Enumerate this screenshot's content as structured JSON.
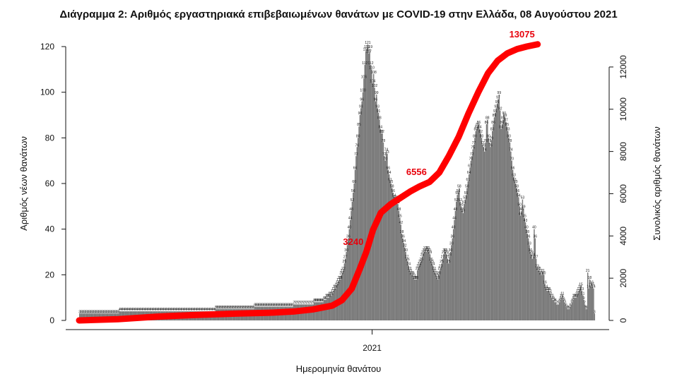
{
  "chart_data": {
    "type": "bar",
    "title": "Διάγραμμα 2: Αριθμός εργαστηριακά επιβεβαιωμένων θανάτων με COVID-19 στην Ελλάδα, 08 Αυγούστου 2021",
    "xlabel": "Ημερομηνία θανάτου",
    "ylabel": "Αριθμός νέων θανάτων",
    "y2label": "Συνολικός αριθμός θανάτων",
    "ylim": [
      0,
      120
    ],
    "y2lim": [
      0,
      13100
    ],
    "yticks": [
      0,
      20,
      40,
      60,
      80,
      100,
      120
    ],
    "y2ticks": [
      0,
      2000,
      4000,
      6000,
      8000,
      10000,
      12000
    ],
    "xtick_label": "2021",
    "xtick_index": 301,
    "grid": false,
    "bar_color": "#7a7a7a",
    "line_color": "#ff0000",
    "series": [
      {
        "type": "bar",
        "values": [
          3,
          3,
          3,
          3,
          3,
          3,
          3,
          3,
          3,
          3,
          3,
          3,
          3,
          3,
          3,
          3,
          3,
          3,
          3,
          3,
          3,
          3,
          3,
          3,
          3,
          3,
          3,
          3,
          3,
          3,
          3,
          3,
          3,
          3,
          3,
          3,
          3,
          3,
          3,
          3,
          3,
          4,
          4,
          4,
          4,
          4,
          4,
          4,
          4,
          4,
          4,
          4,
          4,
          4,
          4,
          4,
          4,
          4,
          4,
          4,
          4,
          4,
          4,
          4,
          4,
          4,
          4,
          4,
          4,
          4,
          4,
          4,
          4,
          4,
          4,
          4,
          4,
          4,
          4,
          4,
          4,
          4,
          4,
          4,
          4,
          4,
          4,
          4,
          4,
          4,
          4,
          4,
          4,
          4,
          4,
          4,
          4,
          4,
          4,
          4,
          4,
          4,
          4,
          4,
          4,
          4,
          4,
          4,
          4,
          4,
          4,
          4,
          4,
          4,
          4,
          4,
          4,
          4,
          4,
          4,
          4,
          4,
          4,
          4,
          4,
          4,
          4,
          4,
          4,
          4,
          4,
          4,
          4,
          4,
          4,
          4,
          4,
          4,
          4,
          4,
          5,
          5,
          5,
          5,
          5,
          5,
          5,
          5,
          5,
          5,
          5,
          5,
          5,
          5,
          5,
          5,
          5,
          5,
          5,
          5,
          5,
          5,
          5,
          5,
          5,
          5,
          5,
          5,
          5,
          5,
          5,
          5,
          5,
          5,
          5,
          5,
          5,
          5,
          5,
          5,
          6,
          6,
          6,
          6,
          6,
          6,
          6,
          6,
          6,
          6,
          6,
          6,
          6,
          6,
          6,
          6,
          6,
          6,
          6,
          6,
          6,
          6,
          6,
          6,
          6,
          6,
          6,
          6,
          6,
          6,
          6,
          6,
          6,
          6,
          6,
          6,
          6,
          6,
          6,
          6,
          7,
          7,
          7,
          7,
          7,
          7,
          7,
          7,
          7,
          7,
          7,
          7,
          7,
          7,
          7,
          7,
          7,
          7,
          7,
          7,
          7,
          8,
          8,
          8,
          8,
          8,
          8,
          8,
          8,
          8,
          8,
          9,
          9,
          9,
          10,
          10,
          10,
          11,
          11,
          11,
          12,
          13,
          14,
          14,
          15,
          16,
          17,
          18,
          18,
          20,
          21,
          22,
          25,
          27,
          30,
          33,
          36,
          40,
          44,
          48,
          52,
          56,
          60,
          66,
          72,
          76,
          80,
          85,
          90,
          93,
          96,
          100,
          106,
          112,
          118,
          119,
          121,
          117,
          119,
          112,
          110,
          104,
          108,
          102,
          96,
          99,
          93,
          91,
          88,
          84,
          82,
          82,
          78,
          72,
          70,
          74,
          73,
          66,
          64,
          61,
          60,
          58,
          56,
          54,
          53,
          53,
          52,
          51,
          48,
          45,
          42,
          38,
          36,
          34,
          32,
          30,
          27,
          26,
          24,
          22,
          21,
          20,
          20,
          19,
          18,
          18,
          18,
          22,
          23,
          24,
          25,
          26,
          28,
          29,
          30,
          31,
          30,
          31,
          31,
          30,
          29,
          26,
          25,
          24,
          22,
          21,
          20,
          19,
          18,
          20,
          22,
          23,
          25,
          27,
          29,
          30,
          30,
          29,
          27,
          25,
          28,
          30,
          33,
          36,
          40,
          44,
          48,
          52,
          55,
          56,
          58,
          52,
          50,
          48,
          47,
          51,
          53,
          55,
          58,
          61,
          64,
          67,
          70,
          72,
          75,
          77,
          80,
          83,
          84,
          85,
          86,
          84,
          82,
          80,
          77,
          76,
          74,
          78,
          86,
          88,
          80,
          78,
          76,
          79,
          83,
          86,
          89,
          91,
          93,
          95,
          97,
          99,
          92,
          84,
          86,
          88,
          90,
          89,
          87,
          85,
          83,
          80,
          78,
          74,
          70,
          66,
          63,
          61,
          60,
          58,
          56,
          54,
          50,
          46,
          48,
          53,
          49,
          45,
          43,
          40,
          38,
          36,
          33,
          30,
          29,
          27,
          28,
          40,
          36,
          27,
          23,
          22,
          22,
          21,
          20,
          20,
          21,
          20,
          16,
          14,
          13,
          13,
          13,
          12,
          11,
          10,
          9,
          9,
          8,
          8,
          7,
          7,
          7,
          8,
          9,
          10,
          11,
          9,
          8,
          7,
          6,
          5,
          5,
          5,
          6,
          7,
          8,
          9,
          10,
          10,
          10,
          11,
          12,
          13,
          14,
          15,
          13,
          11,
          9,
          7,
          5,
          5,
          21,
          14,
          18,
          15,
          16,
          15,
          14,
          3
        ]
      },
      {
        "type": "line",
        "name": "",
        "cumulative_points": [
          [
            0,
            0
          ],
          [
            40,
            60
          ],
          [
            80,
            180
          ],
          [
            120,
            260
          ],
          [
            160,
            320
          ],
          [
            200,
            370
          ],
          [
            220,
            420
          ],
          [
            240,
            520
          ],
          [
            260,
            700
          ],
          [
            270,
            960
          ],
          [
            280,
            1500
          ],
          [
            288,
            2400
          ],
          [
            295,
            3240
          ],
          [
            302,
            4300
          ],
          [
            310,
            5100
          ],
          [
            320,
            5500
          ],
          [
            330,
            5800
          ],
          [
            340,
            6100
          ],
          [
            350,
            6350
          ],
          [
            360,
            6556
          ],
          [
            370,
            7000
          ],
          [
            380,
            7800
          ],
          [
            390,
            8700
          ],
          [
            400,
            9800
          ],
          [
            410,
            10800
          ],
          [
            420,
            11700
          ],
          [
            430,
            12300
          ],
          [
            440,
            12650
          ],
          [
            450,
            12850
          ],
          [
            460,
            12970
          ],
          [
            471,
            13075
          ]
        ]
      }
    ],
    "annotations": [
      {
        "text": "13075",
        "index": 471,
        "value": 13075
      },
      {
        "text": "6556",
        "index": 360,
        "value": 6556
      },
      {
        "text": "3240",
        "index": 295,
        "value": 3240
      }
    ]
  }
}
